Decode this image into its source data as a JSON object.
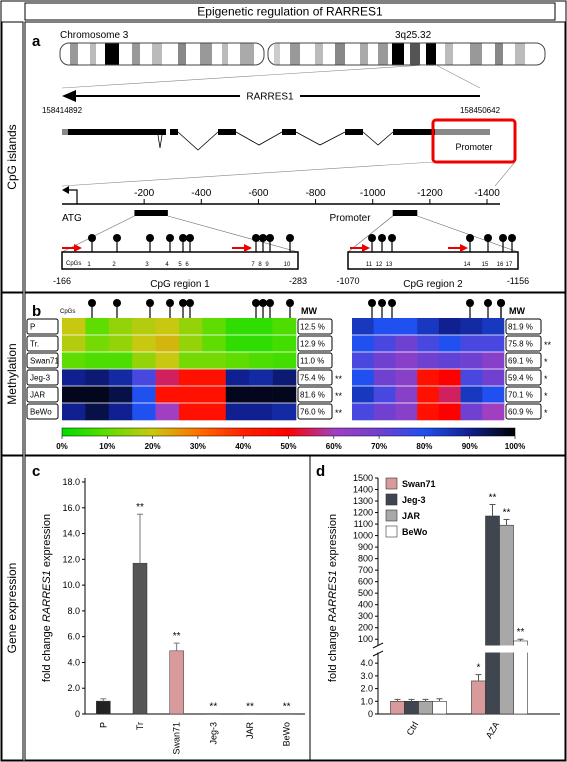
{
  "title": "Epigenetic regulation of RARRES1",
  "section_labels": [
    "CpG islands",
    "Methylation",
    "Gene expression"
  ],
  "panel_a": {
    "letter": "a",
    "chromosome": "Chromosome 3",
    "band": "3q25.32",
    "gene": "RARRES1",
    "gene_start": 158414892,
    "gene_end": 158450642,
    "promoter_box": "Promoter",
    "scale_ticks": [
      -200,
      -400,
      -600,
      -800,
      -1000,
      -1200,
      -1400
    ],
    "atg": "ATG",
    "scale_label": "Promoter",
    "cpgs_label": "CpGs",
    "regions": [
      {
        "name": "CpG region 1",
        "start": -166,
        "end": -283,
        "cpgs": [
          1,
          2,
          3,
          4,
          5,
          6,
          7,
          8,
          9,
          10
        ]
      },
      {
        "name": "CpG region 2",
        "start": -1070,
        "end": -1156,
        "cpgs": [
          11,
          12,
          13,
          14,
          15,
          16,
          17
        ]
      }
    ]
  },
  "panel_b": {
    "letter": "b",
    "cpgs_label": "CpGs",
    "mw_label": "MW",
    "rows": [
      "P",
      "Tr.",
      "Swan71",
      "Jeg-3",
      "JAR",
      "BeWo"
    ],
    "regions": [
      {
        "cells": [
          [
            20,
            10,
            15,
            18,
            20,
            15,
            10,
            5,
            5,
            8
          ],
          [
            18,
            12,
            15,
            20,
            22,
            15,
            10,
            5,
            5,
            7
          ],
          [
            10,
            8,
            8,
            15,
            20,
            12,
            12,
            10,
            8,
            7
          ],
          [
            90,
            92,
            88,
            75,
            55,
            45,
            45,
            90,
            88,
            92
          ],
          [
            98,
            98,
            95,
            80,
            45,
            45,
            45,
            98,
            98,
            98
          ],
          [
            90,
            95,
            90,
            80,
            60,
            45,
            45,
            90,
            90,
            88
          ]
        ],
        "mw": [
          "12.5 %",
          "12.9 %",
          "11.0 %",
          "75.4 %",
          "81.6 %",
          "76.0 %"
        ],
        "significance": [
          null,
          null,
          null,
          "**",
          "**",
          "**"
        ]
      },
      {
        "cells": [
          [
            85,
            80,
            80,
            85,
            90,
            88,
            85
          ],
          [
            80,
            75,
            70,
            75,
            80,
            75,
            75
          ],
          [
            75,
            70,
            65,
            70,
            72,
            70,
            65
          ],
          [
            80,
            70,
            65,
            45,
            50,
            75,
            70
          ],
          [
            85,
            75,
            65,
            45,
            55,
            85,
            80
          ],
          [
            75,
            70,
            65,
            45,
            50,
            70,
            60
          ]
        ],
        "mw": [
          "81.9 %",
          "75.8 %",
          "69.1 %",
          "59.4 %",
          "70.1 %",
          "60.9 %"
        ],
        "significance": [
          null,
          "**",
          "*",
          "*",
          "*",
          "*"
        ]
      }
    ],
    "colormap": [
      {
        "value": 0,
        "color": "#00dd00"
      },
      {
        "value": 10,
        "color": "#60dd00"
      },
      {
        "value": 20,
        "color": "#c8c810"
      },
      {
        "value": 30,
        "color": "#ff7000"
      },
      {
        "value": 40,
        "color": "#ff2000"
      },
      {
        "value": 50,
        "color": "#ff0000"
      },
      {
        "value": 60,
        "color": "#a040c0"
      },
      {
        "value": 70,
        "color": "#7040d0"
      },
      {
        "value": 80,
        "color": "#2050f0"
      },
      {
        "value": 90,
        "color": "#102090"
      },
      {
        "value": 100,
        "color": "#000000"
      }
    ],
    "colorbar_ticks": [
      {
        "value": 0,
        "label": "0%"
      },
      {
        "value": 10,
        "label": "10%"
      },
      {
        "value": 20,
        "label": "20%"
      },
      {
        "value": 30,
        "label": "30%"
      },
      {
        "value": 40,
        "label": "40%"
      },
      {
        "value": 50,
        "label": "50%"
      },
      {
        "value": 60,
        "label": "60%"
      },
      {
        "value": 70,
        "label": "70%"
      },
      {
        "value": 80,
        "label": "80%"
      },
      {
        "value": 90,
        "label": "90%"
      },
      {
        "value": 100,
        "label": "100%"
      }
    ]
  },
  "panel_c": {
    "letter": "c",
    "type": "bar",
    "ylabel_parts": [
      "fold change ",
      "RARRES1",
      " expression"
    ],
    "categories": [
      "P",
      "Tr",
      "Swan71",
      "Jeg-3",
      "JAR",
      "BeWo"
    ],
    "values": [
      1.0,
      11.7,
      4.9,
      0.03,
      0.03,
      0.03
    ],
    "errors": [
      0.18,
      3.8,
      0.6,
      null,
      null,
      null
    ],
    "colors": [
      "#222222",
      "#555555",
      "#d89a9a",
      "#555555",
      "#555555",
      "#555555"
    ],
    "significance": [
      null,
      "**",
      "**",
      "**",
      "**",
      "**"
    ],
    "ylim": [
      0,
      18
    ],
    "yticks": [
      0,
      {
        "value": 2,
        "label": "2.0"
      },
      {
        "value": 4,
        "label": "4.0"
      },
      {
        "value": 6,
        "label": "6.0"
      },
      {
        "value": 8,
        "label": "8.0"
      },
      {
        "value": 10,
        "label": "10.0"
      },
      {
        "value": 12,
        "label": "12.0"
      },
      {
        "value": 14,
        "label": "14.0"
      },
      {
        "value": 16,
        "label": "16.0"
      },
      {
        "value": 18,
        "label": "18.0"
      }
    ]
  },
  "panel_d": {
    "letter": "d",
    "type": "bar",
    "ylabel_parts": [
      "fold change ",
      "RARRES1",
      " expression"
    ],
    "categories": [
      "Ctrl",
      "AZA"
    ],
    "series": [
      {
        "name": "Swan71",
        "color": "#d89a9a",
        "values": [
          1.0,
          2.6
        ],
        "errors": [
          0.15,
          0.5
        ],
        "significance": [
          null,
          "*"
        ]
      },
      {
        "name": "Jeg-3",
        "color": "#3f4650",
        "values": [
          1.0,
          1170
        ],
        "errors": [
          0.15,
          100
        ],
        "significance": [
          null,
          "**"
        ]
      },
      {
        "name": "JAR",
        "color": "#a8a8a8",
        "values": [
          1.0,
          1090
        ],
        "errors": [
          0.15,
          50
        ],
        "significance": [
          null,
          "**"
        ]
      },
      {
        "name": "BeWo",
        "color": "#ffffff",
        "values": [
          1.0,
          85
        ],
        "errors": [
          0.2,
          15
        ],
        "significance": [
          null,
          "**"
        ]
      }
    ],
    "ylim_lower": [
      0,
      4.8
    ],
    "yticks_lower": [
      0,
      {
        "value": 1,
        "label": "1.0"
      },
      {
        "value": 2,
        "label": "2.0"
      },
      {
        "value": 3,
        "label": "3.0"
      },
      {
        "value": 4,
        "label": "4.0"
      }
    ],
    "ylim_upper": [
      50,
      1500
    ],
    "yticks_upper": [
      100,
      200,
      300,
      400,
      500,
      600,
      700,
      800,
      900,
      1000,
      1100,
      1200,
      1300,
      1400,
      1500
    ]
  }
}
